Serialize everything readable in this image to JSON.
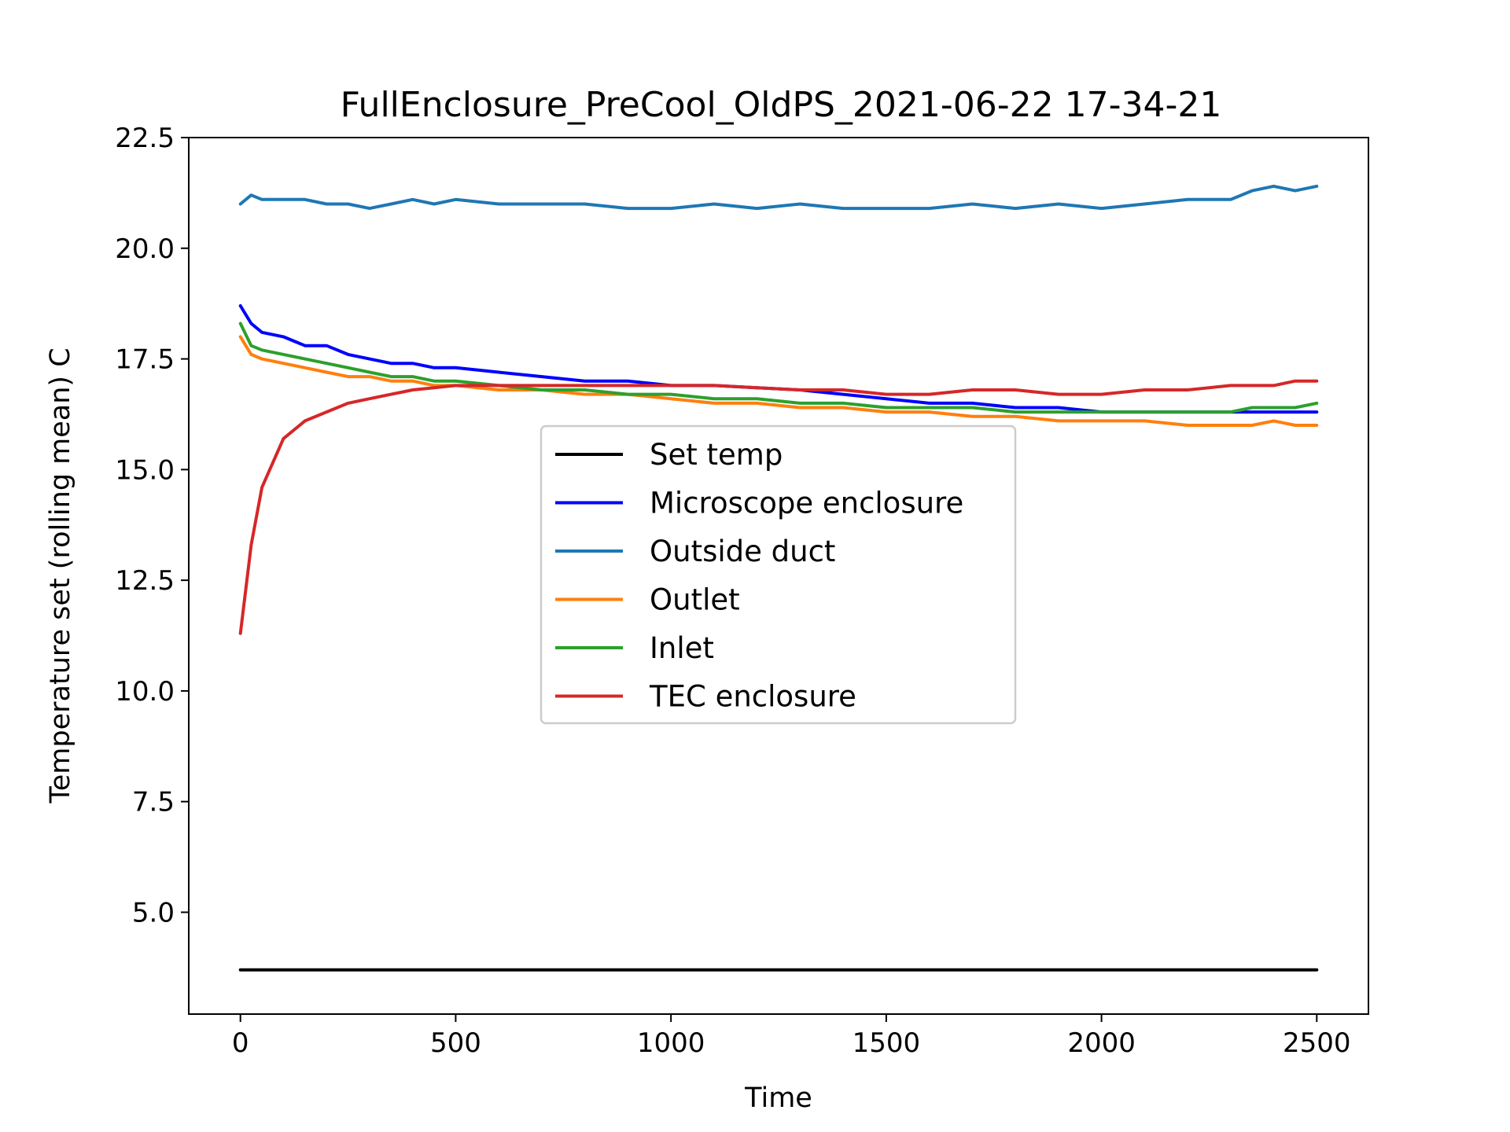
{
  "chart_data": {
    "type": "line",
    "title": "FullEnclosure_PreCool_OldPS_2021-06-22 17-34-21",
    "xlabel": "Time",
    "ylabel": "Temperature set (rolling mean) C",
    "xlim": [
      -120,
      2620
    ],
    "ylim": [
      2.7,
      22.5
    ],
    "xticks": [
      "0",
      "500",
      "1000",
      "1500",
      "2000",
      "2500"
    ],
    "yticks": [
      "5.0",
      "7.5",
      "10.0",
      "12.5",
      "15.0",
      "17.5",
      "20.0",
      "22.5"
    ],
    "grid": false,
    "legend_position": "center",
    "x": [
      0,
      25,
      50,
      100,
      150,
      200,
      250,
      300,
      350,
      400,
      450,
      500,
      600,
      700,
      800,
      900,
      1000,
      1100,
      1200,
      1300,
      1400,
      1500,
      1600,
      1700,
      1800,
      1900,
      2000,
      2100,
      2200,
      2300,
      2350,
      2400,
      2450,
      2500
    ],
    "series": [
      {
        "name": "Set temp",
        "color": "#000000",
        "values": [
          3.7,
          3.7,
          3.7,
          3.7,
          3.7,
          3.7,
          3.7,
          3.7,
          3.7,
          3.7,
          3.7,
          3.7,
          3.7,
          3.7,
          3.7,
          3.7,
          3.7,
          3.7,
          3.7,
          3.7,
          3.7,
          3.7,
          3.7,
          3.7,
          3.7,
          3.7,
          3.7,
          3.7,
          3.7,
          3.7,
          3.7,
          3.7,
          3.7,
          3.7
        ]
      },
      {
        "name": "Microscope enclosure",
        "color": "#0000ff",
        "values": [
          18.7,
          18.3,
          18.1,
          18.0,
          17.8,
          17.8,
          17.6,
          17.5,
          17.4,
          17.4,
          17.3,
          17.3,
          17.2,
          17.1,
          17.0,
          17.0,
          16.9,
          16.9,
          16.85,
          16.8,
          16.7,
          16.6,
          16.5,
          16.5,
          16.4,
          16.4,
          16.3,
          16.3,
          16.3,
          16.3,
          16.3,
          16.3,
          16.3,
          16.3
        ]
      },
      {
        "name": "Outside duct",
        "color": "#1f77b4",
        "values": [
          21.0,
          21.2,
          21.1,
          21.1,
          21.1,
          21.0,
          21.0,
          20.9,
          21.0,
          21.1,
          21.0,
          21.1,
          21.0,
          21.0,
          21.0,
          20.9,
          20.9,
          21.0,
          20.9,
          21.0,
          20.9,
          20.9,
          20.9,
          21.0,
          20.9,
          21.0,
          20.9,
          21.0,
          21.1,
          21.1,
          21.3,
          21.4,
          21.3,
          21.4
        ]
      },
      {
        "name": "Outlet",
        "color": "#ff7f0e",
        "values": [
          18.0,
          17.6,
          17.5,
          17.4,
          17.3,
          17.2,
          17.1,
          17.1,
          17.0,
          17.0,
          16.9,
          16.9,
          16.8,
          16.8,
          16.7,
          16.7,
          16.6,
          16.5,
          16.5,
          16.4,
          16.4,
          16.3,
          16.3,
          16.2,
          16.2,
          16.1,
          16.1,
          16.1,
          16.0,
          16.0,
          16.0,
          16.1,
          16.0,
          16.0
        ]
      },
      {
        "name": "Inlet",
        "color": "#2ca02c",
        "values": [
          18.3,
          17.8,
          17.7,
          17.6,
          17.5,
          17.4,
          17.3,
          17.2,
          17.1,
          17.1,
          17.0,
          17.0,
          16.9,
          16.8,
          16.8,
          16.7,
          16.7,
          16.6,
          16.6,
          16.5,
          16.5,
          16.4,
          16.4,
          16.4,
          16.3,
          16.3,
          16.3,
          16.3,
          16.3,
          16.3,
          16.4,
          16.4,
          16.4,
          16.5
        ]
      },
      {
        "name": "TEC enclosure",
        "color": "#d62728",
        "values": [
          11.3,
          13.3,
          14.6,
          15.7,
          16.1,
          16.3,
          16.5,
          16.6,
          16.7,
          16.8,
          16.85,
          16.9,
          16.9,
          16.9,
          16.9,
          16.9,
          16.9,
          16.9,
          16.85,
          16.8,
          16.8,
          16.7,
          16.7,
          16.8,
          16.8,
          16.7,
          16.7,
          16.8,
          16.8,
          16.9,
          16.9,
          16.9,
          17.0,
          17.0
        ]
      }
    ]
  }
}
